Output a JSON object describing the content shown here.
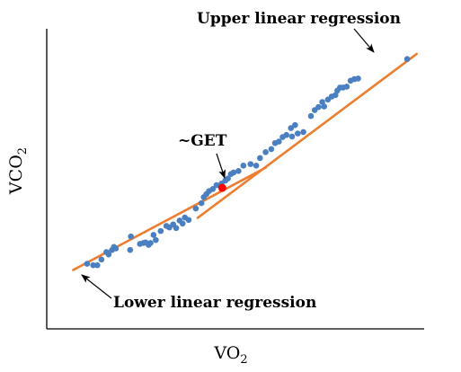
{
  "chart_data": {
    "type": "scatter",
    "xlabel_main": "VO",
    "xlabel_sub": "2",
    "ylabel_main": "VCO",
    "ylabel_sub": "2",
    "xlim": [
      0,
      100
    ],
    "ylim": [
      0,
      100
    ],
    "grid": false,
    "ticks": false,
    "colors": {
      "points": "#4a7fc1",
      "regression": "#ed7d31",
      "get_point": "#ff0000",
      "axes": "#000000"
    },
    "points": [
      [
        10.7,
        21.7
      ],
      [
        12.3,
        21.2
      ],
      [
        13.4,
        21.2
      ],
      [
        14.5,
        23.1
      ],
      [
        15.8,
        25.6
      ],
      [
        16.4,
        24.8
      ],
      [
        17.3,
        26.3
      ],
      [
        17.8,
        27.3
      ],
      [
        18.3,
        26.8
      ],
      [
        22.1,
        26.3
      ],
      [
        22.3,
        30.8
      ],
      [
        24.7,
        28.3
      ],
      [
        25.6,
        28.6
      ],
      [
        26.2,
        28.8
      ],
      [
        27.0,
        28.0
      ],
      [
        27.5,
        28.6
      ],
      [
        28.3,
        31.3
      ],
      [
        28.9,
        29.6
      ],
      [
        30.2,
        32.6
      ],
      [
        31.7,
        34.3
      ],
      [
        32.5,
        33.8
      ],
      [
        33.5,
        34.8
      ],
      [
        34.3,
        33.6
      ],
      [
        35.2,
        36.1
      ],
      [
        36.0,
        35.1
      ],
      [
        36.6,
        37.1
      ],
      [
        37.6,
        36.3
      ],
      [
        39.5,
        40.1
      ],
      [
        41.0,
        41.9
      ],
      [
        41.6,
        43.9
      ],
      [
        42.3,
        44.9
      ],
      [
        43.0,
        45.9
      ],
      [
        44.0,
        46.6
      ],
      [
        45.0,
        47.9
      ],
      [
        46.3,
        48.4
      ],
      [
        47.3,
        49.4
      ],
      [
        48.0,
        50.1
      ],
      [
        48.8,
        51.6
      ],
      [
        49.5,
        52.1
      ],
      [
        50.8,
        52.6
      ],
      [
        52.1,
        54.4
      ],
      [
        54.0,
        54.9
      ],
      [
        55.5,
        54.4
      ],
      [
        56.5,
        56.9
      ],
      [
        58.0,
        58.9
      ],
      [
        59.5,
        59.9
      ],
      [
        60.5,
        61.9
      ],
      [
        61.5,
        62.4
      ],
      [
        62.5,
        63.9
      ],
      [
        63.5,
        64.6
      ],
      [
        64.7,
        66.9
      ],
      [
        65.0,
        64.1
      ],
      [
        65.8,
        67.9
      ],
      [
        66.5,
        65.1
      ],
      [
        68.0,
        65.6
      ],
      [
        70.0,
        70.9
      ],
      [
        71.0,
        72.9
      ],
      [
        72.0,
        73.9
      ],
      [
        73.0,
        75.6
      ],
      [
        73.5,
        74.1
      ],
      [
        74.5,
        76.4
      ],
      [
        75.5,
        77.4
      ],
      [
        76.5,
        77.9
      ],
      [
        77.0,
        79.4
      ],
      [
        77.7,
        80.4
      ],
      [
        78.5,
        80.4
      ],
      [
        79.5,
        80.7
      ],
      [
        80.5,
        82.7
      ],
      [
        81.5,
        83.2
      ],
      [
        82.5,
        83.4
      ],
      [
        95.5,
        89.9
      ]
    ],
    "get_point": [
      46.5,
      47.0
    ],
    "lower_regression": {
      "x": [
        7.0,
        58.0
      ],
      "y": [
        19.6,
        53.7
      ]
    },
    "upper_regression": {
      "x": [
        40.0,
        98.0
      ],
      "y": [
        37.0,
        91.6
      ]
    },
    "annotations": [
      {
        "id": "upper",
        "text": "Upper linear regression"
      },
      {
        "id": "lower",
        "text": "Lower linear regression"
      },
      {
        "id": "get",
        "text": "~GET"
      }
    ]
  }
}
